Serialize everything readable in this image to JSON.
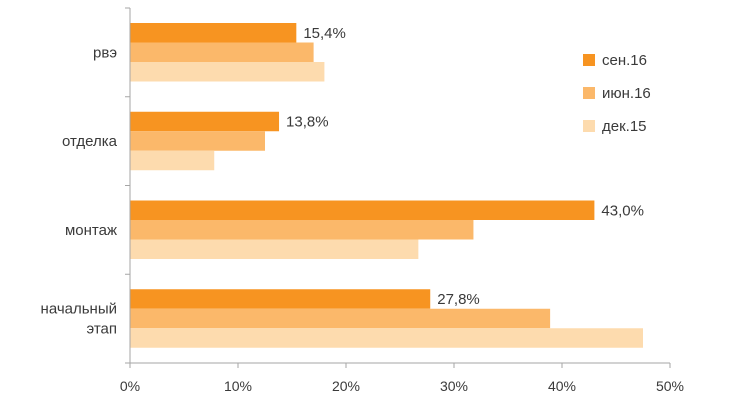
{
  "chart_data": {
    "type": "bar",
    "orientation": "horizontal",
    "title": "",
    "xlabel": "",
    "ylabel": "",
    "categories": [
      "рвэ",
      "отделка",
      "монтаж",
      "начальный этап"
    ],
    "category_lines": [
      [
        "рвэ"
      ],
      [
        "отделка"
      ],
      [
        "монтаж"
      ],
      [
        "начальный",
        "этап"
      ]
    ],
    "series": [
      {
        "name": "сен.16",
        "color": "#F79421",
        "values": [
          15.4,
          13.8,
          43.0,
          27.8
        ],
        "labels": [
          "15,4%",
          "13,8%",
          "43,0%",
          "27,8%"
        ]
      },
      {
        "name": "июн.16",
        "color": "#FBB86A",
        "values": [
          17.0,
          12.5,
          31.8,
          38.9
        ]
      },
      {
        "name": "дек.15",
        "color": "#FDDBAE",
        "values": [
          18.0,
          7.8,
          26.7,
          47.5
        ]
      }
    ],
    "xlim": [
      0,
      50
    ],
    "x_ticks": [
      0,
      10,
      20,
      30,
      40,
      50
    ],
    "x_tick_labels": [
      "0%",
      "10%",
      "20%",
      "30%",
      "40%",
      "50%"
    ],
    "legend_position": "right",
    "grid": false
  }
}
